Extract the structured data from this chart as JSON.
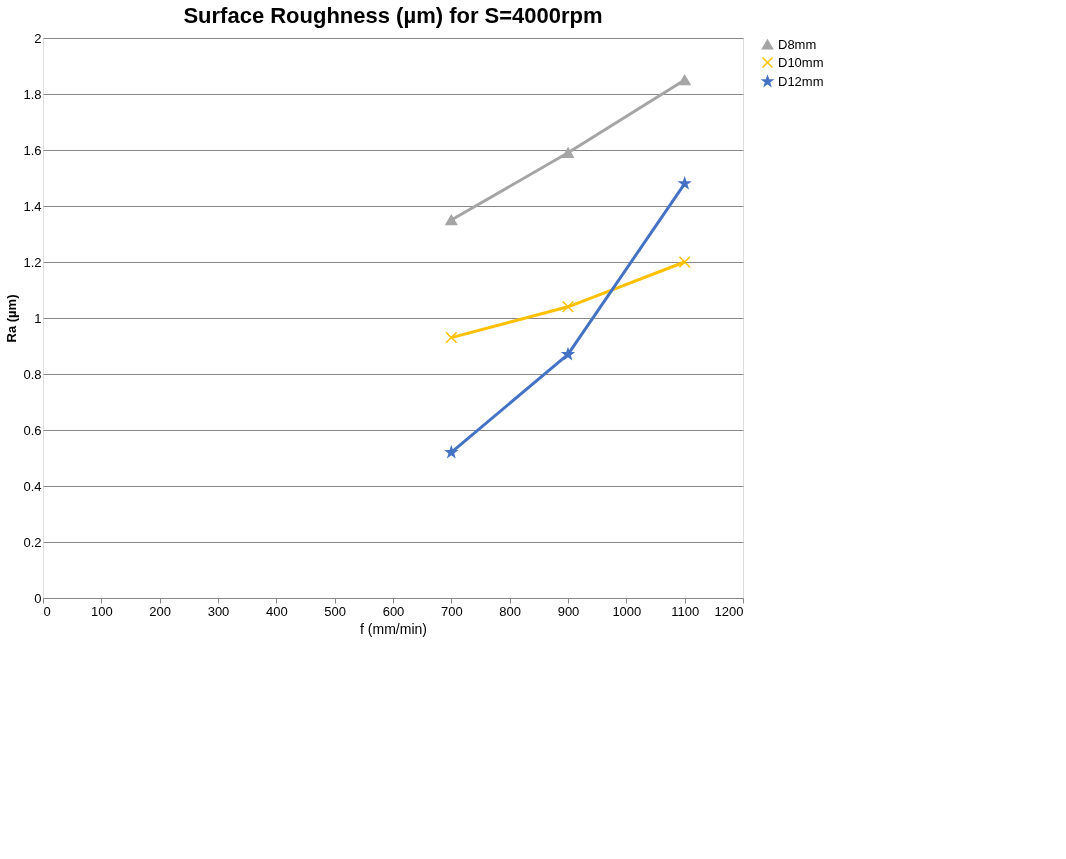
{
  "chart_data": {
    "type": "line",
    "title": "Surface Roughness (µm) for S=4000rpm",
    "xlabel": "f (mm/min)",
    "ylabel": "Ra  (µm)",
    "x": [
      700,
      900,
      1100
    ],
    "series": [
      {
        "name": "D8mm",
        "color": "#a5a5a5",
        "marker": "triangle",
        "values": [
          1.35,
          1.59,
          1.85
        ]
      },
      {
        "name": "D10mm",
        "color": "#ffc000",
        "marker": "cross",
        "values": [
          0.93,
          1.04,
          1.2
        ]
      },
      {
        "name": "D12mm",
        "color": "#4472c4",
        "marker": "star",
        "values": [
          0.52,
          0.87,
          1.48
        ]
      }
    ],
    "xlim": [
      0,
      1200
    ],
    "xticks": [
      0,
      100,
      200,
      300,
      400,
      500,
      600,
      700,
      800,
      900,
      1000,
      1100,
      1200
    ],
    "ylim": [
      0,
      2
    ],
    "yticks": [
      0,
      0.2,
      0.4,
      0.6,
      0.8,
      1,
      1.2,
      1.4,
      1.6,
      1.8,
      2
    ],
    "grid": "y",
    "legend": "right",
    "line_style": "solid"
  }
}
